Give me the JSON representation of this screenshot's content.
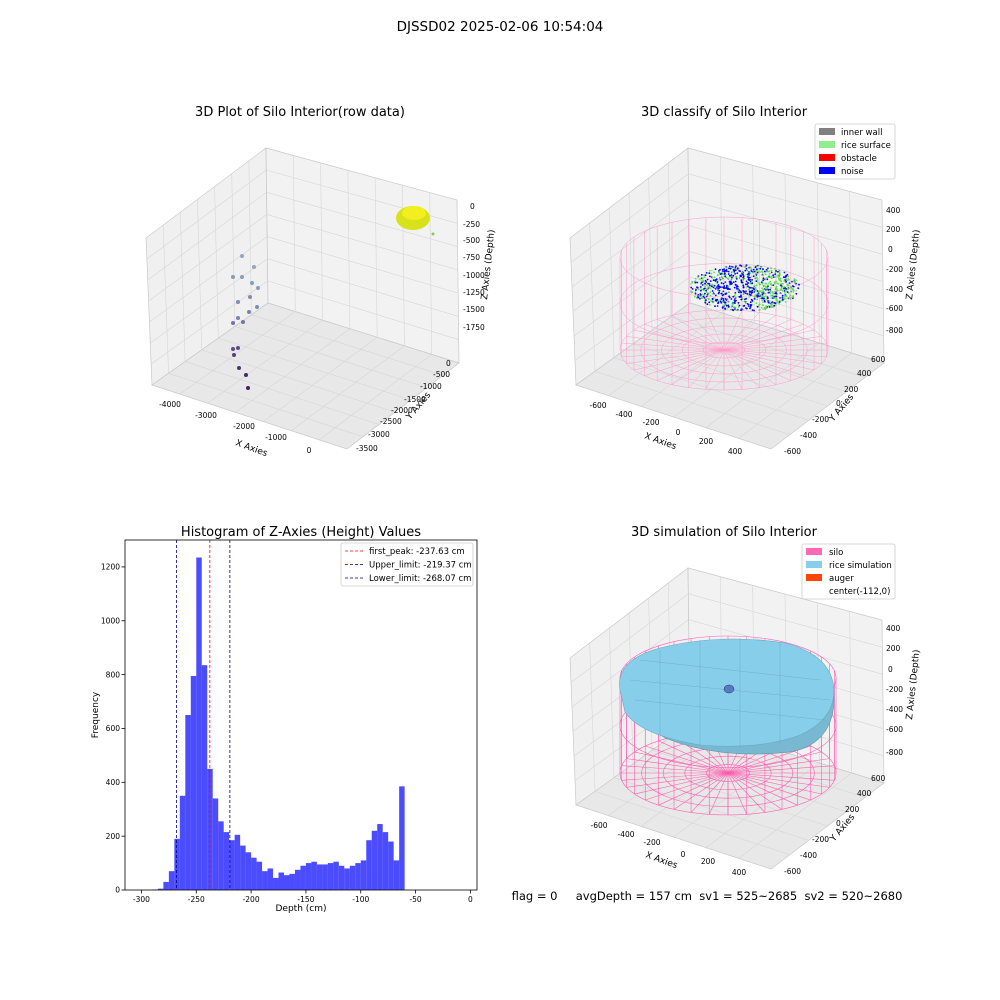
{
  "suptitle": "DJSSD02 2025-02-06 10:54:04",
  "footer": "flag = 0     avgDepth = 157 cm  sv1 = 525~2685  sv2 = 520~2680",
  "panels": {
    "raw": {
      "title": "3D Plot of Silo Interior(row data)",
      "xlabel": "X Axies",
      "ylabel": "Y Axies",
      "zlabel": "Z Axies (Depth)",
      "xticks": [
        "-4000",
        "-3000",
        "-2000",
        "-1000",
        "0"
      ],
      "yticks": [
        "0",
        "-500",
        "-1000",
        "-1500",
        "-2000",
        "-2500",
        "-3000",
        "-3500"
      ],
      "zticks": [
        "0",
        "-250",
        "-500",
        "-750",
        "-1000",
        "-1250",
        "-1500",
        "-1750"
      ]
    },
    "classify": {
      "title": "3D classify of Silo Interior",
      "xlabel": "X Axies",
      "ylabel": "Y Axies",
      "zlabel": "Z Axies (Depth)",
      "xticks": [
        "-600",
        "-400",
        "-200",
        "0",
        "200",
        "400"
      ],
      "yticks": [
        "600",
        "400",
        "200",
        "0",
        "-200",
        "-400",
        "-600"
      ],
      "zticks": [
        "400",
        "200",
        "0",
        "-200",
        "-400",
        "-600",
        "-800"
      ],
      "legend": [
        {
          "label": "inner wall",
          "color": "#808080"
        },
        {
          "label": "rice surface",
          "color": "#90ee90"
        },
        {
          "label": "obstacle",
          "color": "#ff0000"
        },
        {
          "label": "noise",
          "color": "#0000ff"
        }
      ]
    },
    "simulation": {
      "title": "3D simulation of Silo Interior",
      "xlabel": "X Axies",
      "ylabel": "Y Axies",
      "zlabel": "Z Axies (Depth)",
      "xticks": [
        "-600",
        "-400",
        "-200",
        "0",
        "200",
        "400"
      ],
      "yticks": [
        "600",
        "400",
        "200",
        "0",
        "-200",
        "-400",
        "-600"
      ],
      "zticks": [
        "400",
        "200",
        "0",
        "-200",
        "-400",
        "-600",
        "-800"
      ],
      "legend": [
        {
          "label": "silo",
          "color": "#ff69b4"
        },
        {
          "label": "rice simulation",
          "color": "#87ceeb"
        },
        {
          "label": "auger",
          "color": "#ff4500"
        },
        {
          "label": "center(-112,0)",
          "color": "#ffffff"
        }
      ]
    }
  },
  "chart_data": {
    "type": "bar",
    "title": "Histogram of Z-Axies (Height) Values",
    "xlabel": "Depth (cm)",
    "ylabel": "Frequency",
    "xlim": [
      -315,
      6
    ],
    "ylim": [
      0,
      1300
    ],
    "xticks": [
      -300,
      -250,
      -200,
      -150,
      -100,
      -50,
      0
    ],
    "yticks": [
      0,
      200,
      400,
      600,
      800,
      1000,
      1200
    ],
    "bin_width": 5,
    "bin_start": -290,
    "values": [
      2,
      5,
      30,
      70,
      190,
      350,
      650,
      795,
      1235,
      835,
      450,
      340,
      255,
      215,
      185,
      205,
      165,
      140,
      120,
      105,
      70,
      80,
      45,
      65,
      55,
      60,
      75,
      90,
      100,
      105,
      95,
      95,
      100,
      105,
      90,
      80,
      90,
      100,
      110,
      185,
      220,
      245,
      215,
      180,
      110,
      385
    ],
    "bar_color": "#0000ff",
    "lines": [
      {
        "label": "first_peak: -237.63 cm",
        "x": -237.63,
        "color": "#ff0000"
      },
      {
        "label": "Upper_limit: -219.37 cm",
        "x": -219.37,
        "color": "#00008b"
      },
      {
        "label": "Lower_limit: -268.07 cm",
        "x": -268.07,
        "color": "#00008b"
      }
    ],
    "legend_position": "top-right"
  }
}
